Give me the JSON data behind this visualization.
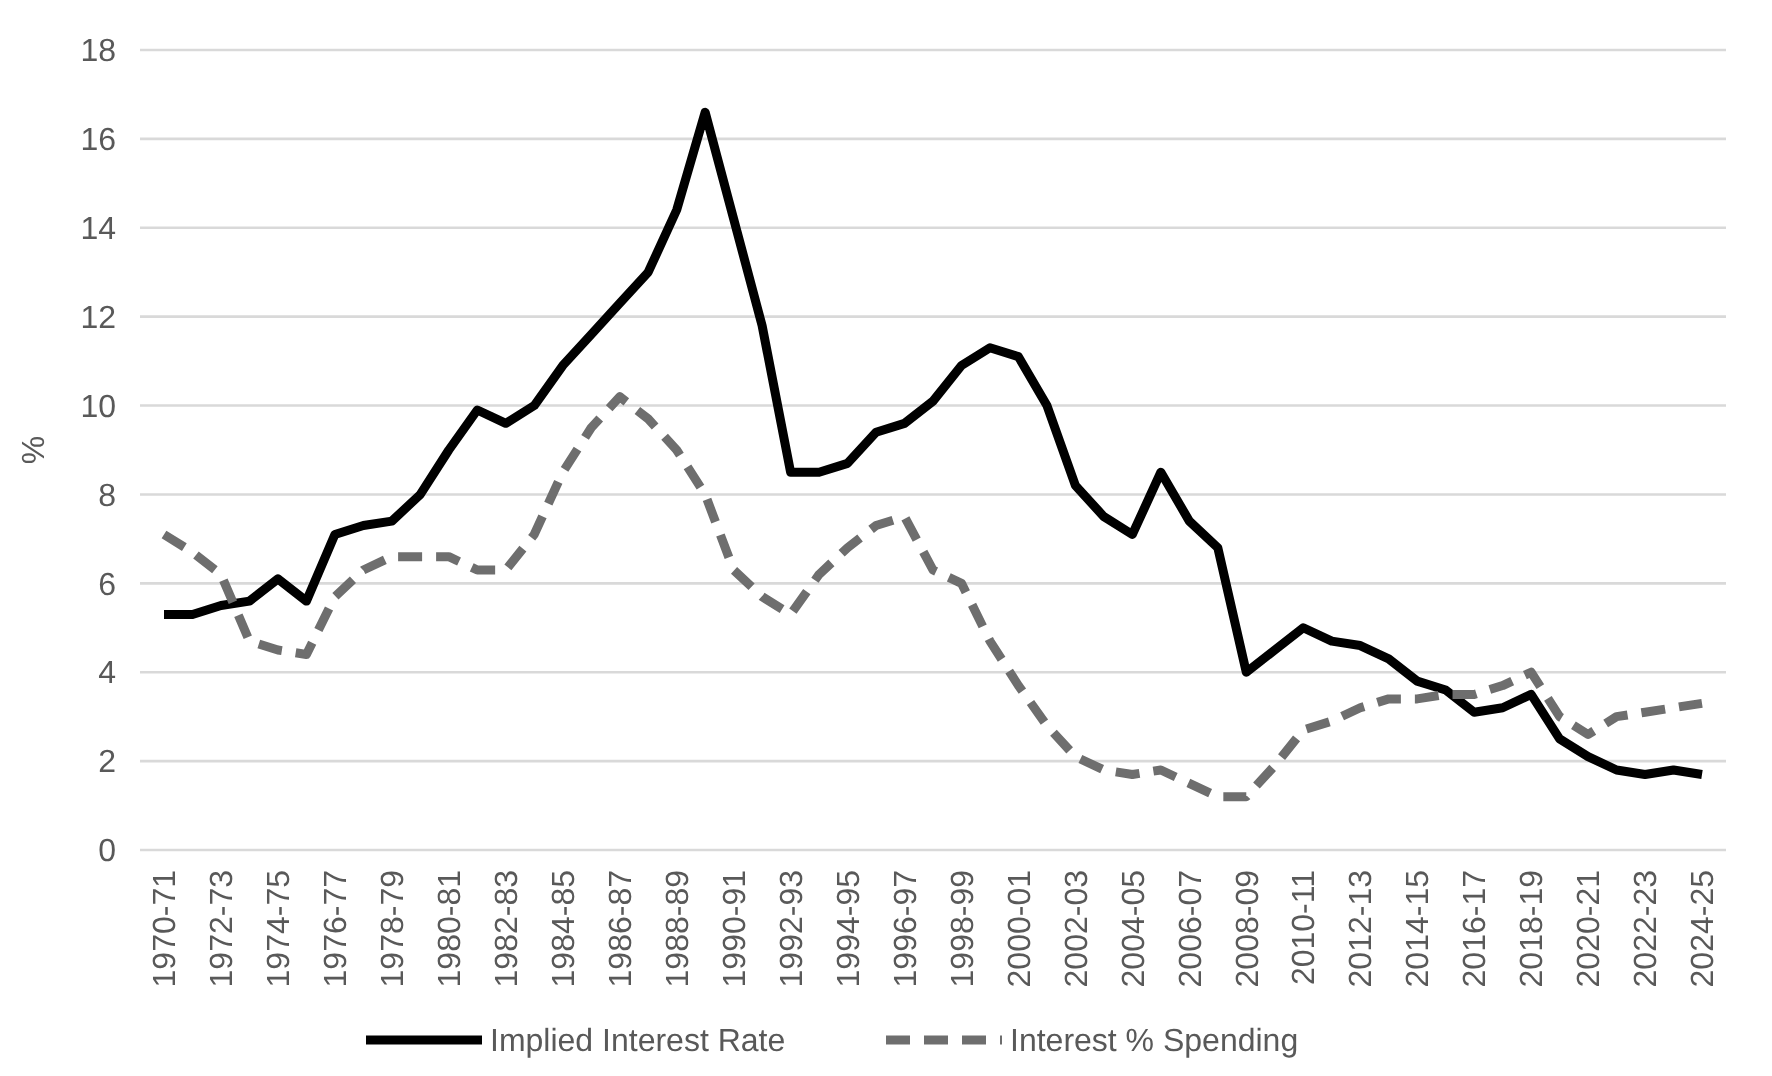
{
  "chart_data": {
    "type": "line",
    "ylabel": "%",
    "categories": [
      "1970-71",
      null,
      "1972-73",
      null,
      "1974-75",
      null,
      "1976-77",
      null,
      "1978-79",
      null,
      "1980-81",
      null,
      "1982-83",
      null,
      "1984-85",
      null,
      "1986-87",
      null,
      "1988-89",
      null,
      "1990-91",
      null,
      "1992-93",
      null,
      "1994-95",
      null,
      "1996-97",
      null,
      "1998-99",
      null,
      "2000-01",
      null,
      "2002-03",
      null,
      "2004-05",
      null,
      "2006-07",
      null,
      "2008-09",
      null,
      "2010-11",
      null,
      "2012-13",
      null,
      "2014-15",
      null,
      "2016-17",
      null,
      "2018-19",
      null,
      "2020-21",
      null,
      "2022-23",
      null,
      "2024-25"
    ],
    "series": [
      {
        "name": "Implied Interest Rate",
        "color": "#000000",
        "line_style": "solid",
        "values": [
          5.3,
          5.3,
          5.5,
          5.6,
          6.1,
          5.6,
          7.1,
          7.3,
          7.4,
          8.0,
          9.0,
          9.9,
          9.6,
          10.0,
          10.9,
          11.6,
          12.3,
          13.0,
          14.4,
          16.6,
          14.2,
          11.8,
          8.5,
          8.5,
          8.7,
          9.4,
          9.6,
          10.1,
          10.9,
          11.3,
          11.1,
          10.0,
          8.2,
          7.5,
          7.1,
          8.5,
          7.4,
          6.8,
          4.0,
          4.5,
          5.0,
          4.7,
          4.6,
          4.3,
          3.8,
          3.6,
          3.1,
          3.2,
          3.5,
          2.5,
          2.1,
          1.8,
          1.7,
          1.8,
          1.7
        ]
      },
      {
        "name": "Interest % Spending",
        "color": "#6e6e6e",
        "line_style": "dashed",
        "values": [
          7.1,
          6.7,
          6.2,
          4.7,
          4.5,
          4.4,
          5.7,
          6.3,
          6.6,
          6.6,
          6.6,
          6.3,
          6.3,
          7.1,
          8.5,
          9.5,
          10.2,
          9.7,
          9.0,
          8.0,
          6.3,
          5.7,
          5.3,
          6.2,
          6.8,
          7.3,
          7.5,
          6.3,
          6.0,
          4.7,
          3.7,
          2.8,
          2.1,
          1.8,
          1.7,
          1.8,
          1.5,
          1.2,
          1.2,
          1.9,
          2.7,
          2.9,
          3.2,
          3.4,
          3.4,
          3.5,
          3.5,
          3.7,
          4.0,
          3.0,
          2.6,
          3.0,
          3.1,
          3.2,
          3.3
        ]
      }
    ],
    "ylim": [
      0,
      18
    ],
    "yticks": [
      0,
      2,
      4,
      6,
      8,
      10,
      12,
      14,
      16,
      18
    ],
    "grid": "y",
    "legend": "bottom",
    "marker": "none"
  }
}
